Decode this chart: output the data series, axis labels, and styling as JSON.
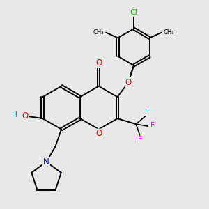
{
  "background_color": "#e8e8e8",
  "bond_color": "#000000",
  "atom_colors": {
    "O": "#ff0000",
    "N": "#0000cd",
    "F": "#ff00ff",
    "Cl": "#00cc00",
    "H": "#008080",
    "C": "#000000"
  },
  "figsize": [
    3.0,
    3.0
  ],
  "dpi": 100
}
